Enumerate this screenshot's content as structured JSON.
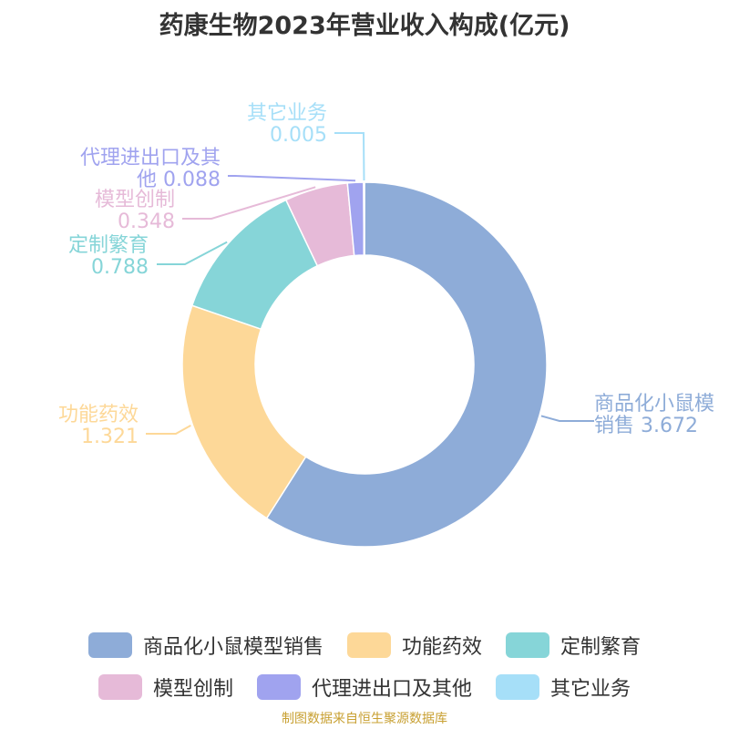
{
  "title": "药康生物2023年营业收入构成(亿元)",
  "source": "制图数据来自恒生聚源数据库",
  "chart_data": {
    "type": "pie",
    "donut": true,
    "title": "药康生物2023年营业收入构成(亿元)",
    "slices": [
      {
        "name": "商品化小鼠模型销售",
        "label_lines": [
          "商品化小鼠模",
          "销售 3.672"
        ],
        "value": 3.672,
        "color": "#8eacd8"
      },
      {
        "name": "功能药效",
        "label_lines": [
          "功能药效",
          "1.321"
        ],
        "value": 1.321,
        "color": "#fdd898"
      },
      {
        "name": "定制繁育",
        "label_lines": [
          "定制繁育",
          "0.788"
        ],
        "value": 0.788,
        "color": "#86d5d8"
      },
      {
        "name": "模型创制",
        "label_lines": [
          "模型创制",
          "0.348"
        ],
        "value": 0.348,
        "color": "#e6bad8"
      },
      {
        "name": "代理进出口及其他",
        "label_lines": [
          "代理进出口及其",
          "他 0.088"
        ],
        "value": 0.088,
        "color": "#a0a3ef"
      },
      {
        "name": "其它业务",
        "label_lines": [
          "其它业务",
          "0.005"
        ],
        "value": 0.005,
        "color": "#a6dff8"
      }
    ],
    "legend_position": "bottom"
  }
}
